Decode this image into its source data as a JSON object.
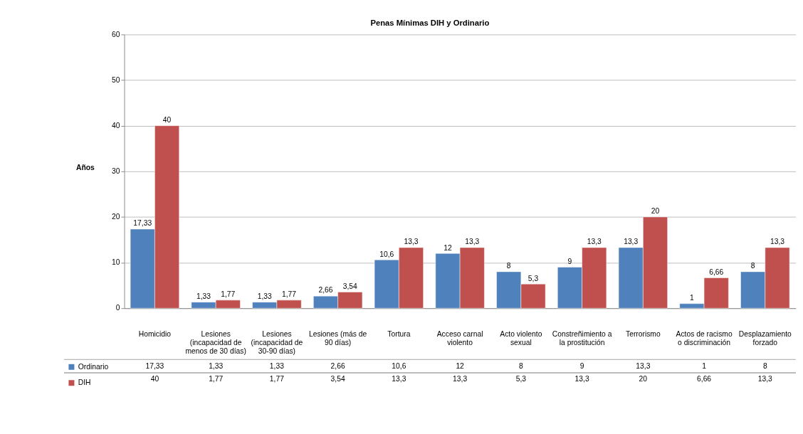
{
  "chart_data": {
    "type": "bar",
    "title": "Penas Mínimas DIH y Ordinario",
    "ylabel": "Años",
    "categories": [
      "Homicidio",
      "Lesiones (incapacidad de menos de 30 días)",
      "Lesiones (incapacidad de 30-90 días)",
      "Lesiones (más de 90 días)",
      "Tortura",
      "Acceso carnal violento",
      "Acto violento sexual",
      "Constreñimiento a la prostitución",
      "Terrorismo",
      "Actos de racismo o discriminación",
      "Desplazamiento forzado"
    ],
    "series": [
      {
        "name": "Ordinario",
        "color": "#4f81bd",
        "values": [
          17.33,
          1.33,
          1.33,
          2.66,
          10.6,
          12,
          8,
          9,
          13.3,
          1,
          8
        ],
        "value_labels": [
          "17,33",
          "1,33",
          "1,33",
          "2,66",
          "10,6",
          "12",
          "8",
          "9",
          "13,3",
          "1",
          "8"
        ]
      },
      {
        "name": "DIH",
        "color": "#c0504d",
        "values": [
          40,
          1.77,
          1.77,
          3.54,
          13.3,
          13.3,
          5.3,
          13.3,
          20,
          6.66,
          13.3
        ],
        "value_labels": [
          "40",
          "1,77",
          "1,77",
          "3,54",
          "13,3",
          "13,3",
          "5,3",
          "13,3",
          "20",
          "6,66",
          "13,3"
        ]
      }
    ],
    "ylim": [
      0,
      60
    ],
    "yticks": [
      0,
      10,
      20,
      30,
      40,
      50,
      60
    ],
    "grid": "y",
    "legend": "bottom left"
  }
}
